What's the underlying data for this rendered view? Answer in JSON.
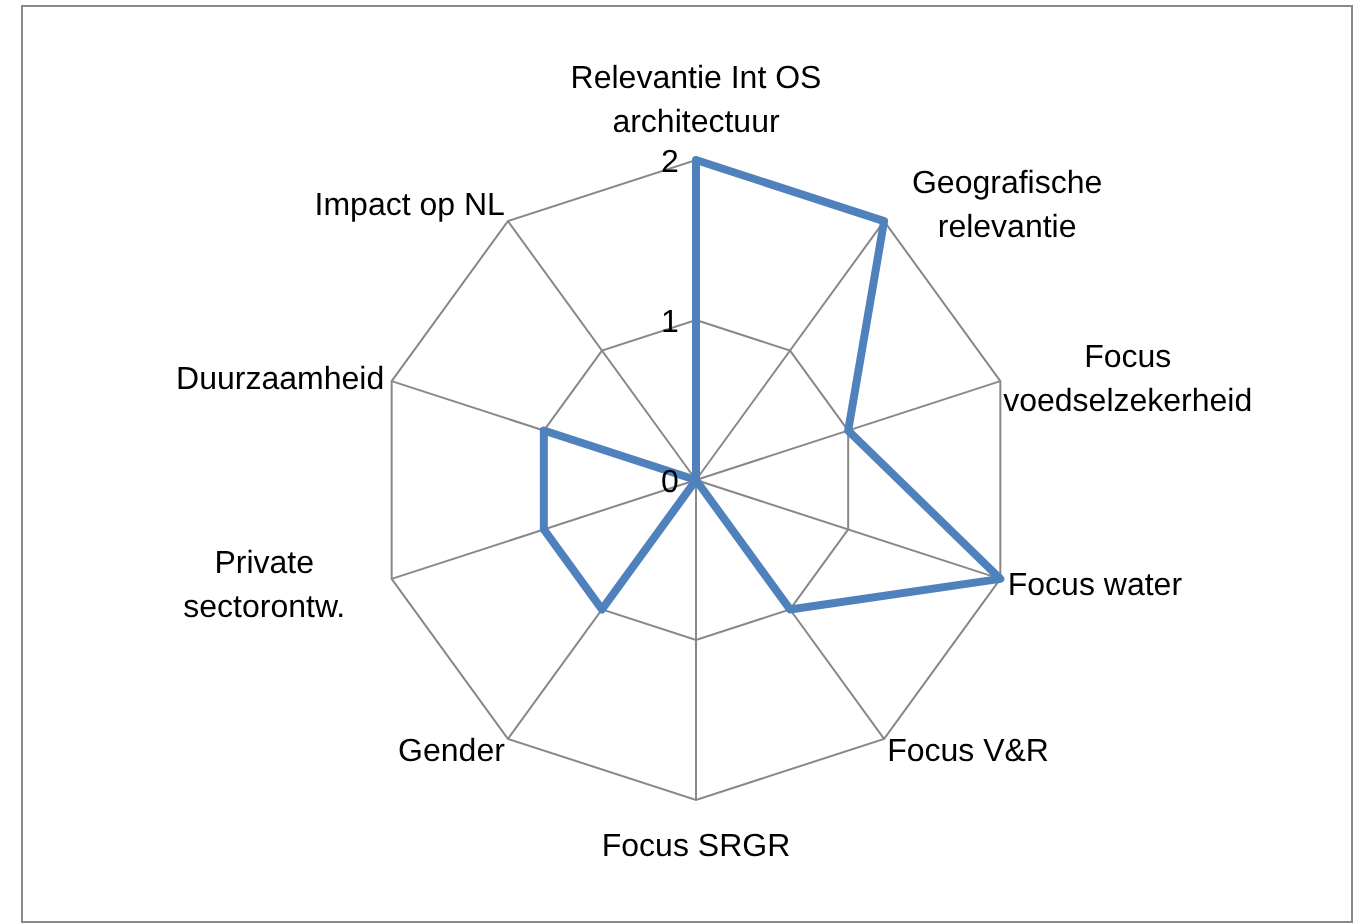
{
  "chart_data": {
    "type": "radar",
    "categories": [
      "Relevantie Int OS architectuur",
      "Geografische relevantie",
      "Focus voedselzekerheid",
      "Focus water",
      "Focus V&R",
      "Focus SRGR",
      "Gender",
      "Private sectorontw.",
      "Duurzaamheid",
      "Impact op NL"
    ],
    "series": [
      {
        "color": "#4f81bd",
        "values": [
          2,
          2,
          1,
          2,
          1,
          0,
          1,
          1,
          1,
          0
        ]
      }
    ],
    "ylim": [
      0,
      2
    ],
    "yticks": [
      0,
      1,
      2
    ],
    "grid": true,
    "marker": "none",
    "line_style": "solid"
  }
}
